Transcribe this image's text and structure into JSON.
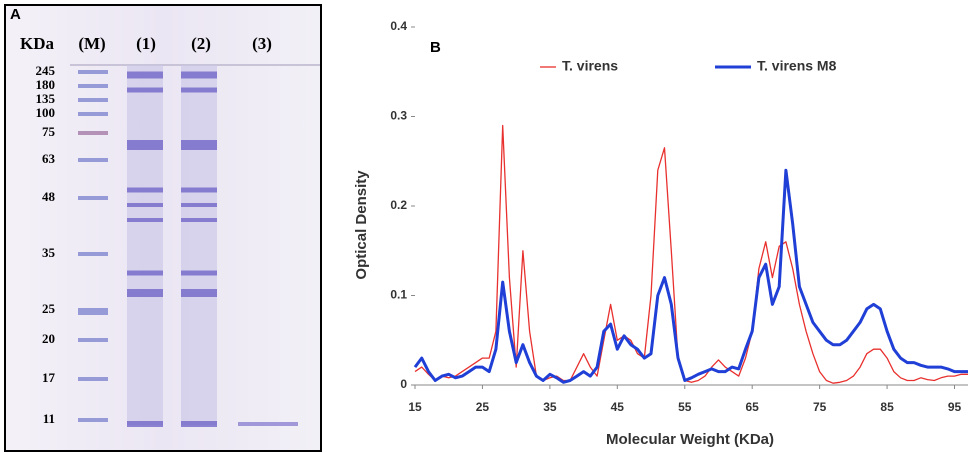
{
  "panel_a": {
    "label": "A",
    "unit": "KDa",
    "lanes": [
      "(M)",
      "(1)",
      "(2)",
      "(3)"
    ],
    "markers": [
      245,
      180,
      135,
      100,
      75,
      63,
      48,
      35,
      25,
      20,
      17,
      11
    ]
  },
  "chart_data": {
    "type": "line",
    "panel_label": "B",
    "xlabel": "Molecular Weight (KDa)",
    "ylabel": "Optical Density",
    "xlim": [
      15,
      97
    ],
    "xticks": [
      15,
      25,
      35,
      45,
      55,
      65,
      75,
      85,
      95
    ],
    "ylim": [
      0,
      0.4
    ],
    "yticks": [
      0,
      0.1,
      0.2,
      0.3,
      0.4
    ],
    "x": [
      15,
      16,
      17,
      18,
      19,
      20,
      21,
      22,
      23,
      24,
      25,
      26,
      27,
      28,
      29,
      30,
      31,
      32,
      33,
      34,
      35,
      36,
      37,
      38,
      39,
      40,
      41,
      42,
      43,
      44,
      45,
      46,
      47,
      48,
      49,
      50,
      51,
      52,
      53,
      54,
      55,
      56,
      57,
      58,
      59,
      60,
      61,
      62,
      63,
      64,
      65,
      66,
      67,
      68,
      69,
      70,
      71,
      72,
      73,
      74,
      75,
      76,
      77,
      78,
      79,
      80,
      81,
      82,
      83,
      84,
      85,
      86,
      87,
      88,
      89,
      90,
      91,
      92,
      93,
      94,
      95,
      96,
      97
    ],
    "series": [
      {
        "name": "T. virens",
        "color": "#e8312e",
        "width": 1.3,
        "values": [
          0.015,
          0.02,
          0.012,
          0.005,
          0.01,
          0.008,
          0.01,
          0.015,
          0.02,
          0.025,
          0.03,
          0.03,
          0.06,
          0.29,
          0.12,
          0.02,
          0.15,
          0.06,
          0.01,
          0.005,
          0.008,
          0.01,
          0.005,
          0.005,
          0.02,
          0.035,
          0.02,
          0.01,
          0.05,
          0.09,
          0.05,
          0.055,
          0.05,
          0.035,
          0.03,
          0.1,
          0.24,
          0.265,
          0.15,
          0.03,
          0.005,
          0.003,
          0.005,
          0.01,
          0.02,
          0.028,
          0.02,
          0.015,
          0.01,
          0.03,
          0.06,
          0.13,
          0.16,
          0.12,
          0.155,
          0.16,
          0.13,
          0.09,
          0.06,
          0.035,
          0.015,
          0.005,
          0.002,
          0.003,
          0.005,
          0.01,
          0.02,
          0.035,
          0.04,
          0.04,
          0.03,
          0.015,
          0.008,
          0.005,
          0.005,
          0.008,
          0.006,
          0.005,
          0.008,
          0.01,
          0.01,
          0.012,
          0.012
        ]
      },
      {
        "name": "T. virens M8",
        "color": "#1f3fd6",
        "width": 3,
        "values": [
          0.02,
          0.03,
          0.015,
          0.005,
          0.01,
          0.012,
          0.008,
          0.01,
          0.015,
          0.02,
          0.02,
          0.015,
          0.04,
          0.115,
          0.06,
          0.025,
          0.045,
          0.025,
          0.01,
          0.005,
          0.012,
          0.008,
          0.003,
          0.005,
          0.01,
          0.015,
          0.01,
          0.02,
          0.06,
          0.068,
          0.04,
          0.055,
          0.045,
          0.04,
          0.03,
          0.035,
          0.1,
          0.12,
          0.09,
          0.03,
          0.005,
          0.008,
          0.012,
          0.015,
          0.018,
          0.015,
          0.015,
          0.02,
          0.018,
          0.04,
          0.06,
          0.12,
          0.135,
          0.09,
          0.11,
          0.24,
          0.18,
          0.11,
          0.09,
          0.07,
          0.06,
          0.05,
          0.045,
          0.045,
          0.05,
          0.06,
          0.07,
          0.085,
          0.09,
          0.085,
          0.06,
          0.04,
          0.03,
          0.025,
          0.025,
          0.022,
          0.02,
          0.02,
          0.02,
          0.018,
          0.015,
          0.015,
          0.015
        ]
      }
    ]
  }
}
